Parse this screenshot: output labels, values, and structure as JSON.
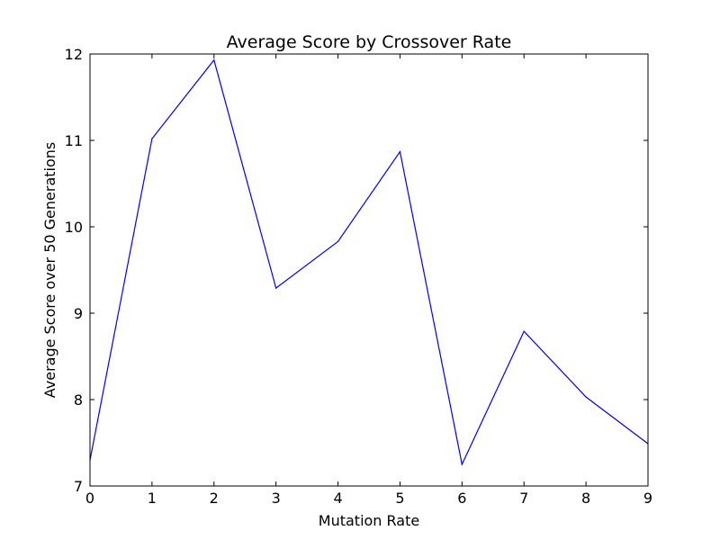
{
  "chart_data": {
    "type": "line",
    "title": "Average Score by Crossover Rate",
    "xlabel": "Mutation Rate",
    "ylabel": "Average Score over 50 Generations",
    "xlim": [
      0,
      9
    ],
    "ylim": [
      7,
      12
    ],
    "xticks": [
      "0",
      "1",
      "2",
      "3",
      "4",
      "5",
      "6",
      "7",
      "8",
      "9"
    ],
    "yticks": [
      "7",
      "8",
      "9",
      "10",
      "11",
      "12"
    ],
    "grid": false,
    "series": [
      {
        "color": "#0000ff",
        "x": [
          0,
          1,
          2,
          3,
          4,
          5,
          6,
          7,
          8,
          9
        ],
        "y": [
          7.3,
          11.02,
          11.93,
          9.29,
          9.83,
          10.87,
          7.25,
          8.79,
          8.03,
          7.49
        ]
      }
    ]
  }
}
